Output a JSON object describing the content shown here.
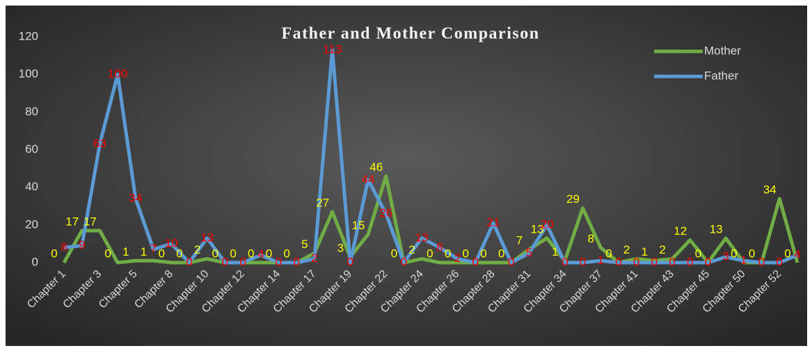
{
  "chart_data": {
    "type": "line",
    "title": "Father and Mother Comparison",
    "categories": [
      "Chapter 1",
      null,
      "Chapter 3",
      null,
      "Chapter 5",
      null,
      "Chapter 8",
      null,
      "Chapter 10",
      null,
      "Chapter 12",
      null,
      "Chapter 14",
      null,
      "Chapter 17",
      null,
      "Chapter 19",
      null,
      "Chapter 22",
      null,
      "Chapter 24",
      null,
      "Chapter 26",
      null,
      "Chapter 28",
      null,
      "Chapter 31",
      null,
      "Chapter 34",
      null,
      "Chapter 37",
      null,
      "Chapter 41",
      null,
      "Chapter 43",
      null,
      "Chapter 45",
      null,
      "Chapter 50",
      null,
      "Chapter 52",
      null
    ],
    "series": [
      {
        "name": "Mother",
        "color": "#70ad47",
        "label_color": "#ffff00",
        "values": [
          0,
          17,
          17,
          0,
          1,
          1,
          0,
          0,
          2,
          0,
          0,
          0,
          0,
          0,
          5,
          27,
          3,
          15,
          46,
          0,
          2,
          0,
          0,
          0,
          0,
          0,
          7,
          13,
          1,
          29,
          8,
          0,
          2,
          1,
          2,
          12,
          0,
          13,
          0,
          0,
          34,
          0
        ]
      },
      {
        "name": "Father",
        "color": "#5b9bd5",
        "label_color": "#ff0000",
        "values": [
          8,
          9,
          63,
          100,
          34,
          7,
          10,
          0,
          13,
          0,
          0,
          4,
          0,
          0,
          2,
          113,
          0,
          44,
          26,
          0,
          13,
          8,
          2,
          0,
          21,
          0,
          5,
          20,
          0,
          0,
          1,
          0,
          0,
          0,
          0,
          0,
          0,
          3,
          1,
          0,
          0,
          4
        ]
      }
    ],
    "ylim": [
      0,
      120
    ],
    "yticks": [
      0,
      20,
      40,
      60,
      80,
      100,
      120
    ],
    "legend": "top-right"
  }
}
